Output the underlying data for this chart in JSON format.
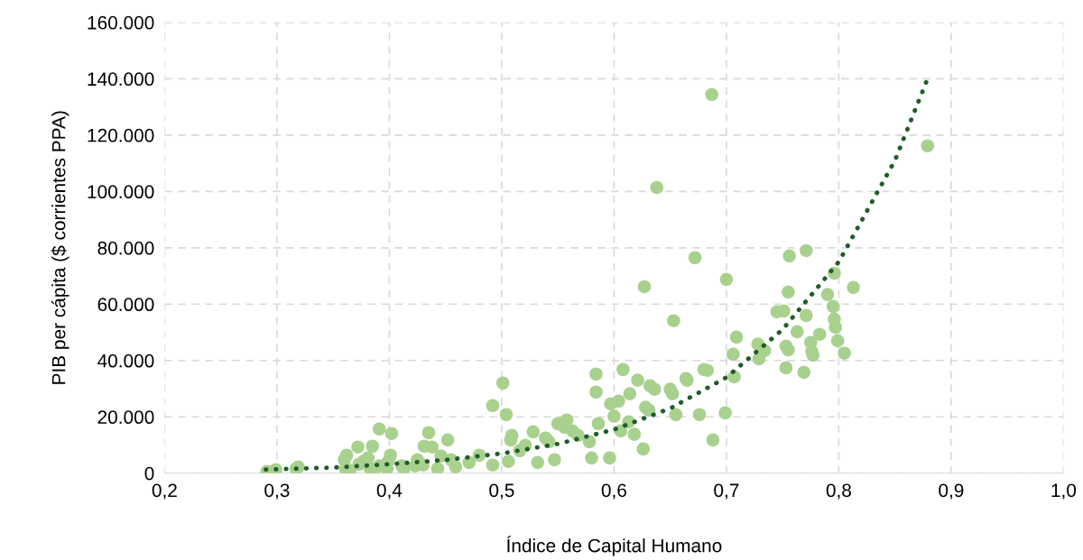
{
  "chart_data": {
    "type": "scatter",
    "xlabel": "Índice de Capital Humano",
    "ylabel": "PIB per cápita ($ corrientes PPA)",
    "xlim": [
      0.2,
      1.0
    ],
    "ylim": [
      0,
      160000
    ],
    "xticks": [
      {
        "value": 0.2,
        "label": "0,2"
      },
      {
        "value": 0.3,
        "label": "0,3"
      },
      {
        "value": 0.4,
        "label": "0,4"
      },
      {
        "value": 0.5,
        "label": "0,5"
      },
      {
        "value": 0.6,
        "label": "0,6"
      },
      {
        "value": 0.7,
        "label": "0,7"
      },
      {
        "value": 0.8,
        "label": "0,8"
      },
      {
        "value": 0.9,
        "label": "0,9"
      },
      {
        "value": 1.0,
        "label": "1,0"
      }
    ],
    "yticks": [
      {
        "value": 0,
        "label": "0"
      },
      {
        "value": 20000,
        "label": "20.000"
      },
      {
        "value": 40000,
        "label": "40.000"
      },
      {
        "value": 60000,
        "label": "60.000"
      },
      {
        "value": 80000,
        "label": "80.000"
      },
      {
        "value": 100000,
        "label": "100.000"
      },
      {
        "value": 120000,
        "label": "120.000"
      },
      {
        "value": 140000,
        "label": "140.000"
      },
      {
        "value": 160000,
        "label": "160.000"
      }
    ],
    "grid": true,
    "series": [
      {
        "color": "#a9d18e",
        "marker": "circle",
        "x": [
          0.291,
          0.299,
          0.317,
          0.319,
          0.36,
          0.362,
          0.361,
          0.365,
          0.372,
          0.373,
          0.377,
          0.381,
          0.383,
          0.386,
          0.391,
          0.398,
          0.399,
          0.385,
          0.391,
          0.402,
          0.401,
          0.411,
          0.413,
          0.423,
          0.425,
          0.43,
          0.431,
          0.435,
          0.438,
          0.443,
          0.446,
          0.452,
          0.455,
          0.459,
          0.471,
          0.48,
          0.492,
          0.492,
          0.501,
          0.504,
          0.506,
          0.508,
          0.509,
          0.516,
          0.521,
          0.528,
          0.532,
          0.539,
          0.542,
          0.547,
          0.55,
          0.556,
          0.558,
          0.563,
          0.568,
          0.578,
          0.58,
          0.584,
          0.584,
          0.586,
          0.596,
          0.597,
          0.6,
          0.604,
          0.606,
          0.608,
          0.613,
          0.614,
          0.618,
          0.621,
          0.626,
          0.627,
          0.632,
          0.636,
          0.638,
          0.628,
          0.631,
          0.65,
          0.652,
          0.653,
          0.655,
          0.664,
          0.672,
          0.676,
          0.68,
          0.688,
          0.687,
          0.7,
          0.699,
          0.709,
          0.706,
          0.728,
          0.734,
          0.729,
          0.707,
          0.683,
          0.665,
          0.745,
          0.751,
          0.755,
          0.771,
          0.763,
          0.783,
          0.775,
          0.776,
          0.777,
          0.753,
          0.755,
          0.753,
          0.769,
          0.79,
          0.795,
          0.796,
          0.797,
          0.799,
          0.805,
          0.796,
          0.813,
          0.756,
          0.771,
          0.879
        ],
        "values": [
          600,
          1300,
          1600,
          2200,
          4800,
          6400,
          1600,
          1000,
          9300,
          3200,
          4200,
          5400,
          1600,
          600,
          2600,
          1600,
          4200,
          9600,
          15700,
          14100,
          6400,
          2600,
          1600,
          2600,
          4800,
          2900,
          9600,
          14400,
          9300,
          1600,
          6100,
          11800,
          4800,
          2200,
          3800,
          6400,
          2900,
          24000,
          32000,
          20800,
          4200,
          11800,
          13400,
          8000,
          9900,
          14700,
          3800,
          12500,
          11200,
          4800,
          17600,
          16300,
          18900,
          15000,
          13400,
          11200,
          5400,
          35200,
          28800,
          17600,
          5400,
          24600,
          20200,
          25600,
          15000,
          36800,
          18200,
          28200,
          13800,
          33000,
          8600,
          66200,
          31000,
          29800,
          101400,
          23400,
          22400,
          29800,
          28200,
          54100,
          20800,
          33600,
          76500,
          20800,
          36800,
          11800,
          134400,
          68800,
          21400,
          48300,
          42200,
          45800,
          43500,
          40600,
          34200,
          36500,
          33000,
          57300,
          57600,
          64300,
          56000,
          50200,
          49300,
          46400,
          43200,
          41900,
          45100,
          43800,
          37400,
          35800,
          63400,
          59200,
          54700,
          51800,
          47000,
          42600,
          71000,
          65900,
          77100,
          79000,
          116200
        ]
      },
      {
        "type": "line",
        "color": "#1e5c2a",
        "line_style": "dotted",
        "x": [
          0.29,
          0.35,
          0.4,
          0.45,
          0.5,
          0.55,
          0.6,
          0.65,
          0.7,
          0.75,
          0.8,
          0.85,
          0.88
        ],
        "values": [
          1300,
          2000,
          3200,
          4700,
          7000,
          10400,
          15500,
          23000,
          34000,
          51000,
          75000,
          111000,
          141000
        ]
      }
    ]
  }
}
